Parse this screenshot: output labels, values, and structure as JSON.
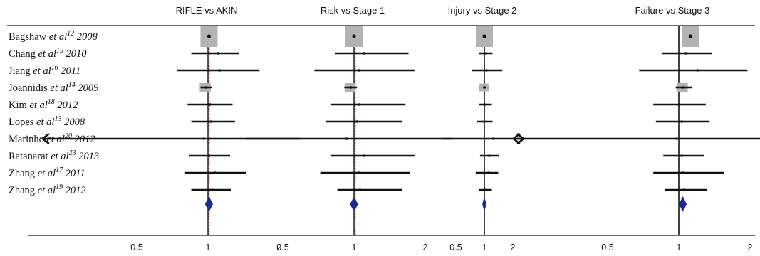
{
  "chart_data": {
    "type": "forest",
    "xscale": "log",
    "ticks": [
      0.5,
      1,
      2
    ],
    "tick_labels": [
      "0.5",
      "1",
      "2"
    ],
    "studies": [
      {
        "author": "Bagshaw",
        "etal": "et al",
        "ref": "12",
        "year": "2008"
      },
      {
        "author": "Chang",
        "etal": "et al",
        "ref": "15",
        "year": "2010"
      },
      {
        "author": "Jiang",
        "etal": "et al",
        "ref": "16",
        "year": "2011"
      },
      {
        "author": "Joannidis",
        "etal": "et al",
        "ref": "14",
        "year": "2009"
      },
      {
        "author": "Kim",
        "etal": "et al",
        "ref": "18",
        "year": "2012"
      },
      {
        "author": "Lopes",
        "etal": "et al",
        "ref": "13",
        "year": "2008"
      },
      {
        "author": "Marinho",
        "etal": "et al",
        "ref": "20",
        "year": "2012"
      },
      {
        "author": "Ratanarat",
        "etal": "et al",
        "ref": "23",
        "year": "2013"
      },
      {
        "author": "Zhang",
        "etal": "et al",
        "ref": "17",
        "year": "2011"
      },
      {
        "author": "Zhang",
        "etal": "et al",
        "ref": "19",
        "year": "2012"
      }
    ],
    "panels": [
      {
        "title": "RIFLE vs AKIN",
        "xlim": [
          0.33,
          2.7
        ],
        "null_line_color": "#c0392b",
        "rows": [
          {
            "est": 1.01,
            "lo": 1.01,
            "hi": 1.01,
            "weight": 1.0
          },
          {
            "est": 1.1,
            "lo": 0.85,
            "hi": 1.35,
            "weight": 0.1
          },
          {
            "est": 1.12,
            "lo": 0.74,
            "hi": 1.65,
            "weight": 0.1
          },
          {
            "est": 0.98,
            "lo": 0.93,
            "hi": 1.04,
            "weight": 0.45
          },
          {
            "est": 1.02,
            "lo": 0.82,
            "hi": 1.27,
            "weight": 0.1
          },
          {
            "est": 1.03,
            "lo": 0.85,
            "hi": 1.3,
            "weight": 0.1
          },
          {
            "est": 0.96,
            "lo": 0.2,
            "hi": 2.45,
            "weight": 0.08,
            "lo_arrow": true
          },
          {
            "est": 1.01,
            "lo": 0.83,
            "hi": 1.24,
            "weight": 0.1
          },
          {
            "est": 1.07,
            "lo": 0.8,
            "hi": 1.45,
            "weight": 0.1
          },
          {
            "est": 1.04,
            "lo": 0.85,
            "hi": 1.25,
            "weight": 0.1
          }
        ],
        "summary": {
          "est": 1.01,
          "lo": 0.985,
          "hi": 1.035
        }
      },
      {
        "title": "Risk vs Stage 1",
        "xlim": [
          0.33,
          2.7
        ],
        "null_line_color": "#c0392b",
        "rows": [
          {
            "est": 1.0,
            "lo": 1.0,
            "hi": 1.0,
            "weight": 1.0
          },
          {
            "est": 1.1,
            "lo": 0.83,
            "hi": 1.7,
            "weight": 0.1
          },
          {
            "est": 1.05,
            "lo": 0.68,
            "hi": 1.8,
            "weight": 0.1
          },
          {
            "est": 0.97,
            "lo": 0.91,
            "hi": 1.03,
            "weight": 0.45
          },
          {
            "est": 1.05,
            "lo": 0.8,
            "hi": 1.65,
            "weight": 0.1
          },
          {
            "est": 1.03,
            "lo": 0.76,
            "hi": 1.6,
            "weight": 0.1
          },
          {
            "est": 0.93,
            "lo": 0.35,
            "hi": 2.6,
            "weight": 0.08
          },
          {
            "est": 1.1,
            "lo": 0.8,
            "hi": 1.8,
            "weight": 0.1
          },
          {
            "est": 1.05,
            "lo": 0.72,
            "hi": 1.72,
            "weight": 0.1
          },
          {
            "est": 1.06,
            "lo": 0.85,
            "hi": 1.6,
            "weight": 0.1
          }
        ],
        "summary": {
          "est": 1.0,
          "lo": 0.975,
          "hi": 1.025
        }
      },
      {
        "title": "Injury vs Stage 2",
        "xlim": [
          0.33,
          2.7
        ],
        "null_line_color": "#111111",
        "rows": [
          {
            "est": 1.0,
            "lo": 1.0,
            "hi": 1.0,
            "weight": 1.0
          },
          {
            "est": 1.04,
            "lo": 0.88,
            "hi": 1.22,
            "weight": 0.1
          },
          {
            "est": 1.05,
            "lo": 0.74,
            "hi": 1.55,
            "weight": 0.1
          },
          {
            "est": 1.0,
            "lo": 0.97,
            "hi": 1.04,
            "weight": 0.25
          },
          {
            "est": 1.01,
            "lo": 0.87,
            "hi": 1.2,
            "weight": 0.1
          },
          {
            "est": 1.0,
            "lo": 0.83,
            "hi": 1.22,
            "weight": 0.1
          },
          {
            "est": 1.25,
            "lo": 0.35,
            "hi": 2.6,
            "weight": 0.08,
            "hi_arrow": true
          },
          {
            "est": 1.13,
            "lo": 0.9,
            "hi": 1.42,
            "weight": 0.1
          },
          {
            "est": 1.1,
            "lo": 0.81,
            "hi": 1.4,
            "weight": 0.1
          },
          {
            "est": 1.01,
            "lo": 0.87,
            "hi": 1.2,
            "weight": 0.1
          }
        ],
        "summary": {
          "est": 1.0,
          "lo": 0.985,
          "hi": 1.015
        }
      },
      {
        "title": "Failure vs Stage 3",
        "xlim": [
          0.33,
          2.7
        ],
        "null_line_color": "#111111",
        "rows": [
          {
            "est": 1.12,
            "lo": 1.12,
            "hi": 1.12,
            "weight": 1.0
          },
          {
            "est": 1.07,
            "lo": 0.85,
            "hi": 1.38,
            "weight": 0.1
          },
          {
            "est": 1.2,
            "lo": 0.68,
            "hi": 1.95,
            "weight": 0.1
          },
          {
            "est": 1.04,
            "lo": 0.97,
            "hi": 1.14,
            "weight": 0.5
          },
          {
            "est": 1.0,
            "lo": 0.78,
            "hi": 1.3,
            "weight": 0.1
          },
          {
            "est": 1.03,
            "lo": 0.8,
            "hi": 1.35,
            "weight": 0.1
          },
          {
            "est": 0.98,
            "lo": 0.2,
            "hi": 2.7,
            "weight": 0.08,
            "lo_arrow": true
          },
          {
            "est": 1.03,
            "lo": 0.86,
            "hi": 1.28,
            "weight": 0.1
          },
          {
            "est": 1.04,
            "lo": 0.78,
            "hi": 1.55,
            "weight": 0.1
          },
          {
            "est": 1.05,
            "lo": 0.87,
            "hi": 1.32,
            "weight": 0.1
          }
        ],
        "summary": {
          "est": 1.04,
          "lo": 1.015,
          "hi": 1.065
        }
      }
    ]
  }
}
